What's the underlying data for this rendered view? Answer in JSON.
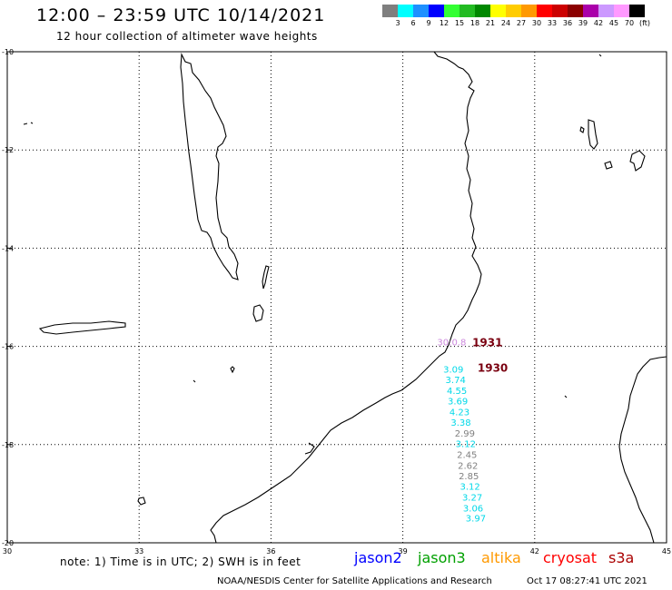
{
  "header": {
    "title": "12:00 – 23:59 UTC 10/14/2021",
    "subtitle": "12 hour collection of altimeter wave heights"
  },
  "color_scale": {
    "colors": [
      "#7f7f7f",
      "#00ffff",
      "#1e90ff",
      "#0000ff",
      "#33ff33",
      "#22bb22",
      "#008800",
      "#ffff00",
      "#ffcc00",
      "#ff9900",
      "#ff0000",
      "#cc0000",
      "#8b0000",
      "#aa00aa",
      "#cc99ff",
      "#ff99ff",
      "#000000"
    ],
    "labels": [
      "3",
      "6",
      "9",
      "12",
      "15",
      "18",
      "21",
      "24",
      "27",
      "30",
      "33",
      "36",
      "39",
      "42",
      "45",
      "70",
      "(ft)"
    ]
  },
  "map": {
    "lat_labels": [
      "-10",
      "-12",
      "-14",
      "-16",
      "-18",
      "-20"
    ],
    "lon_labels": [
      "30",
      "33",
      "36",
      "39",
      "42",
      "45"
    ],
    "observations": [
      {
        "text": "3.09",
        "lon": 39.92,
        "lat": -16.53,
        "color": "#00d8e8"
      },
      {
        "text": "3.74",
        "lon": 39.97,
        "lat": -16.75,
        "color": "#00d8e8"
      },
      {
        "text": "4.55",
        "lon": 40.0,
        "lat": -16.97,
        "color": "#00d8e8"
      },
      {
        "text": "3.69",
        "lon": 40.02,
        "lat": -17.18,
        "color": "#00d8e8"
      },
      {
        "text": "4.23",
        "lon": 40.06,
        "lat": -17.4,
        "color": "#00d8e8"
      },
      {
        "text": "3.38",
        "lon": 40.09,
        "lat": -17.62,
        "color": "#00d8e8"
      },
      {
        "text": "2.99",
        "lon": 40.18,
        "lat": -17.84,
        "color": "#808080"
      },
      {
        "text": "3.12",
        "lon": 40.2,
        "lat": -18.05,
        "color": "#00d8e8"
      },
      {
        "text": "2.45",
        "lon": 40.23,
        "lat": -18.27,
        "color": "#808080"
      },
      {
        "text": "2.62",
        "lon": 40.25,
        "lat": -18.49,
        "color": "#808080"
      },
      {
        "text": "2.85",
        "lon": 40.27,
        "lat": -18.71,
        "color": "#808080"
      },
      {
        "text": "3.12",
        "lon": 40.3,
        "lat": -18.92,
        "color": "#00d8e8"
      },
      {
        "text": "3.27",
        "lon": 40.35,
        "lat": -19.14,
        "color": "#00d8e8"
      },
      {
        "text": "3.06",
        "lon": 40.37,
        "lat": -19.36,
        "color": "#00d8e8"
      },
      {
        "text": "3.97",
        "lon": 40.43,
        "lat": -19.57,
        "color": "#00d8e8"
      }
    ],
    "faint_label": {
      "text": "30:0.8",
      "lon": 39.78,
      "lat": -15.98,
      "color": "#cc88dd"
    },
    "pass_times": [
      {
        "text": "1931",
        "lon": 40.58,
        "lat": -16.0
      },
      {
        "text": "1930",
        "lon": 40.7,
        "lat": -16.52
      }
    ]
  },
  "footer": {
    "note": "note: 1) Time is in UTC; 2) SWH is in feet",
    "satellites": [
      {
        "name": "jason2",
        "color": "#0000ff"
      },
      {
        "name": "jason3",
        "color": "#00a000"
      },
      {
        "name": "altika",
        "color": "#ff9900"
      },
      {
        "name": "cryosat",
        "color": "#ff0000"
      },
      {
        "name": "s3a",
        "color": "#aa0000"
      }
    ],
    "credit": "NOAA/NESDIS Center for Satellite Applications and Research",
    "timestamp": "Oct 17 08:27:41 UTC 2021"
  }
}
